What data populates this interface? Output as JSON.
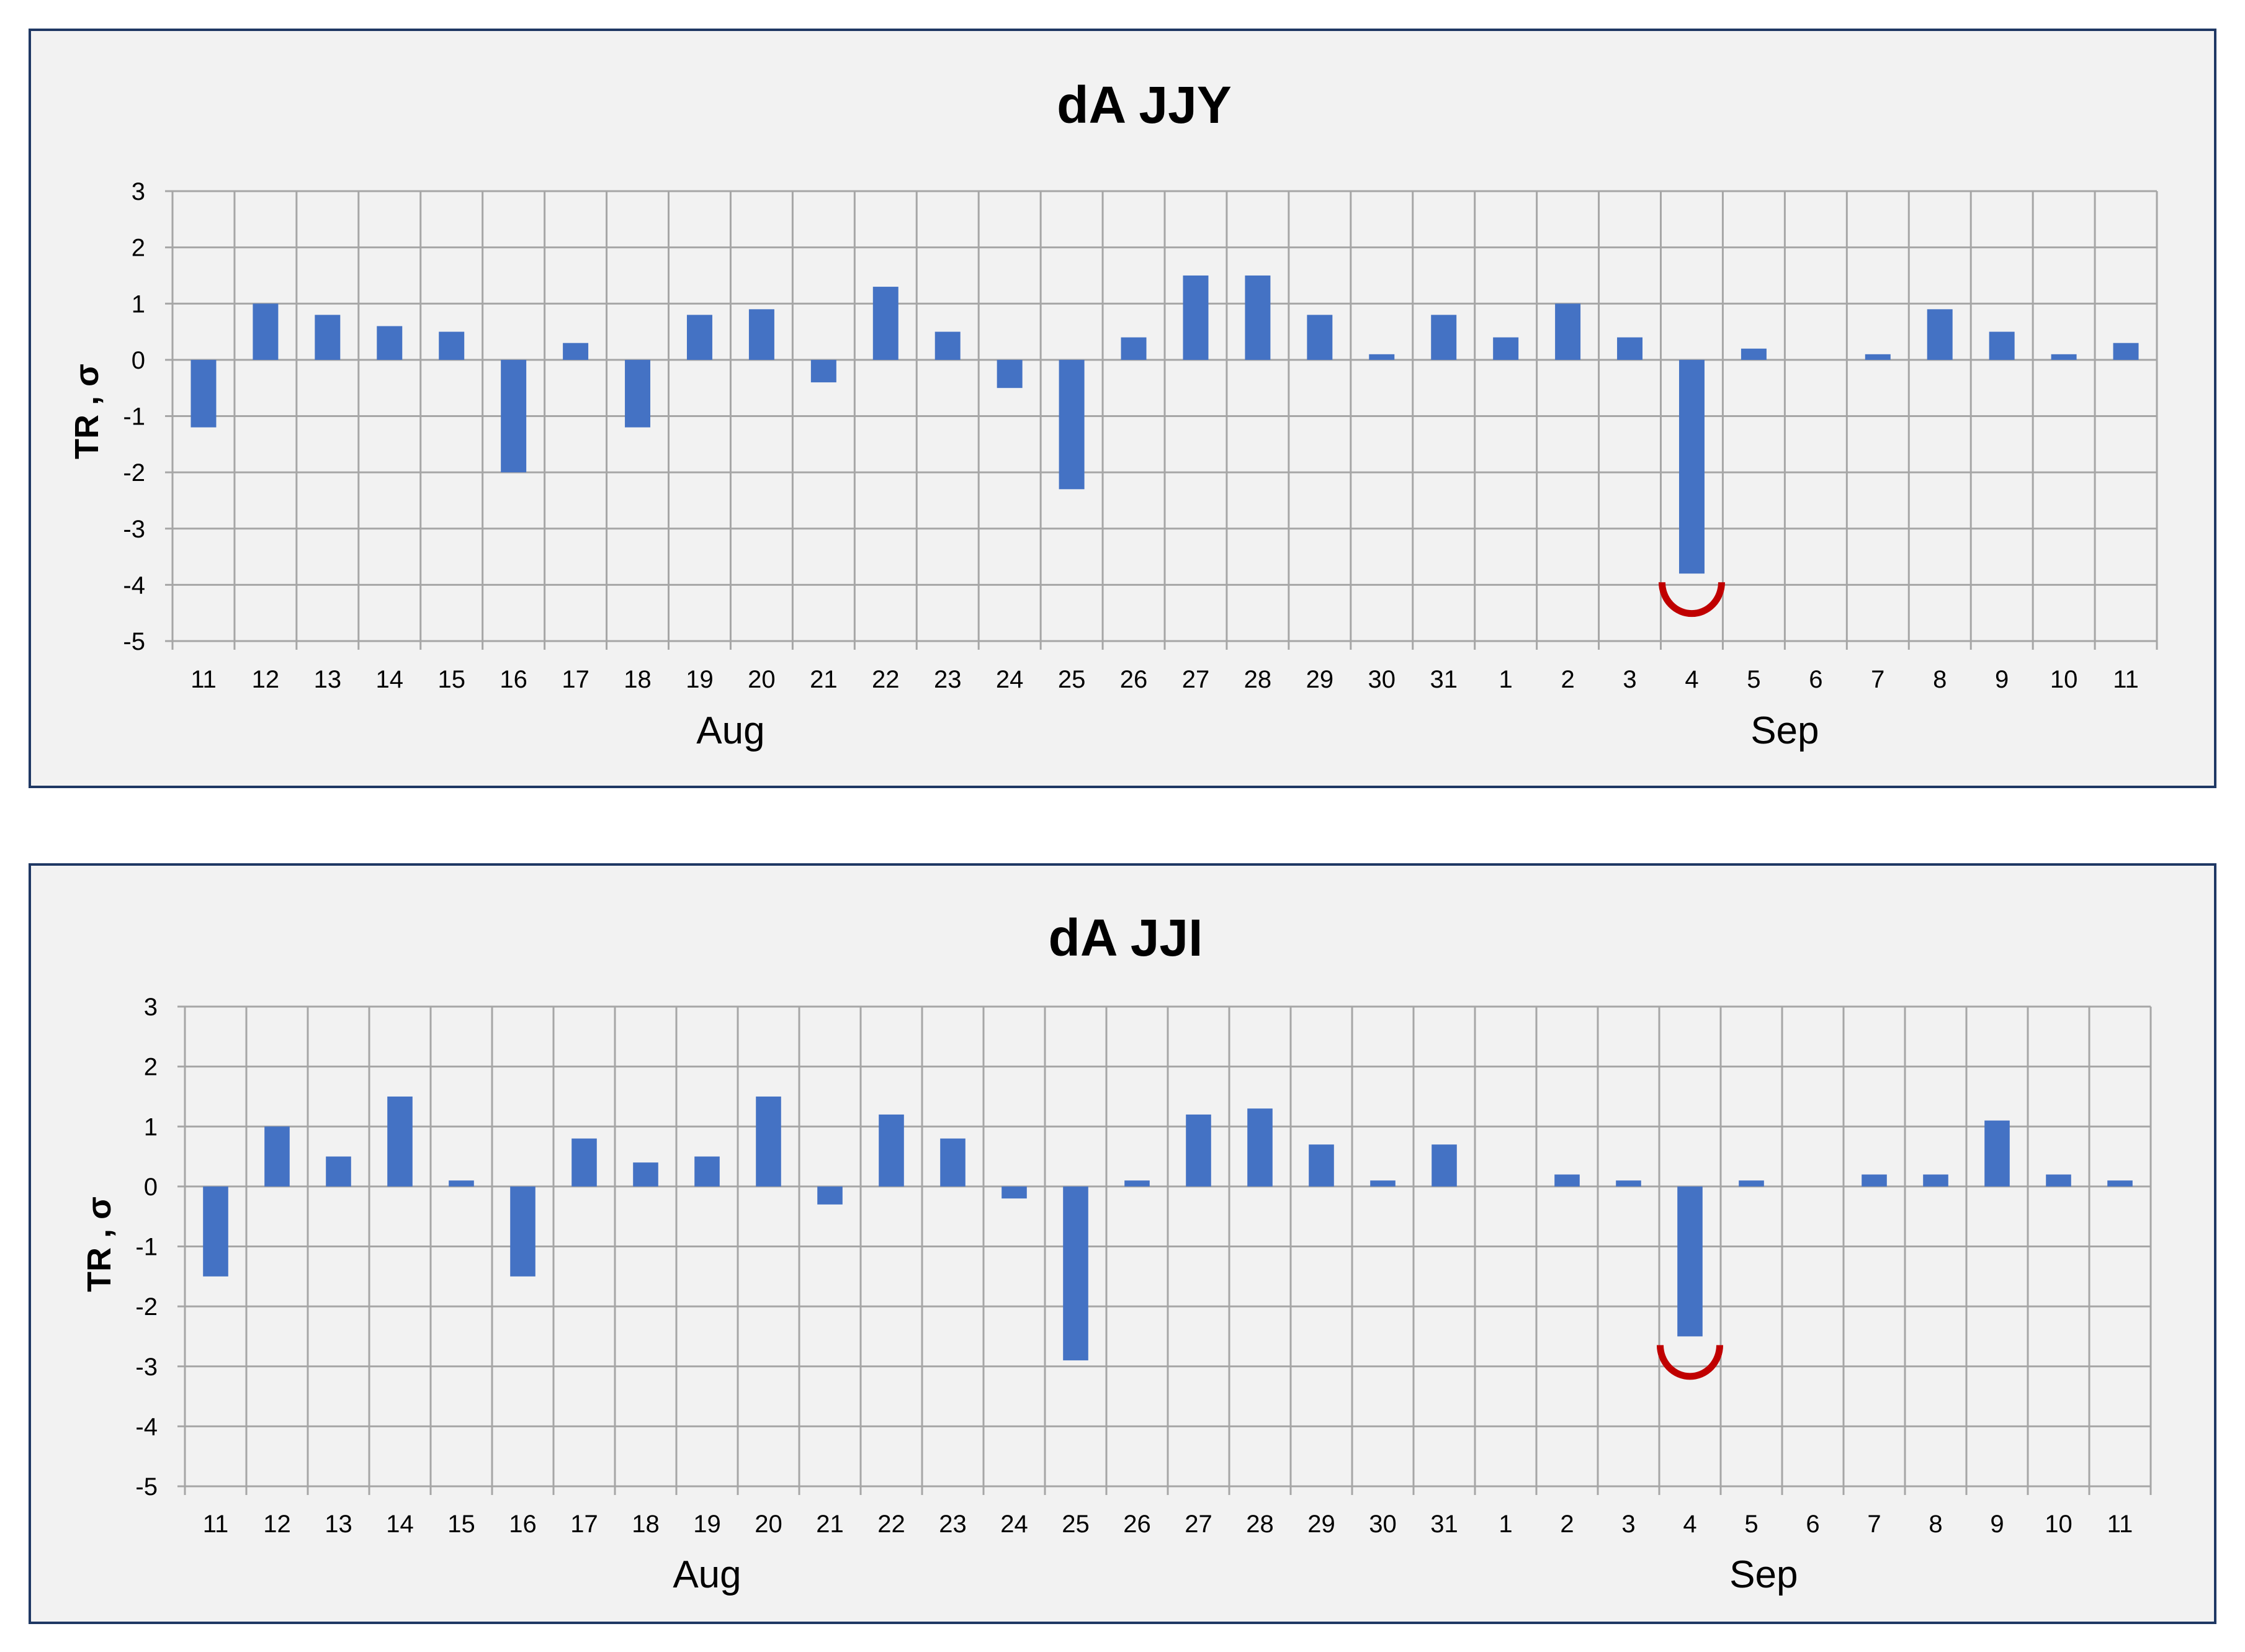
{
  "chart_data": [
    {
      "type": "bar",
      "title": "dA JJY",
      "ylabel": "TR , σ",
      "xlabel": "",
      "ylim": [
        -5,
        3
      ],
      "yticks": [
        3,
        2,
        1,
        0,
        -1,
        -2,
        -3,
        -4,
        -5
      ],
      "grid": true,
      "categories": [
        "11",
        "12",
        "13",
        "14",
        "15",
        "16",
        "17",
        "18",
        "19",
        "20",
        "21",
        "22",
        "23",
        "24",
        "25",
        "26",
        "27",
        "28",
        "29",
        "30",
        "31",
        "1",
        "2",
        "3",
        "4",
        "5",
        "6",
        "7",
        "8",
        "9",
        "10",
        "11"
      ],
      "month_labels": [
        {
          "label": "Aug",
          "under_index": 8.5
        },
        {
          "label": "Sep",
          "under_index": 25.5
        }
      ],
      "values": [
        -1.2,
        1.0,
        0.8,
        0.6,
        0.5,
        -2.0,
        0.3,
        -1.2,
        0.8,
        0.9,
        -0.4,
        1.3,
        0.5,
        -0.5,
        -2.3,
        0.4,
        1.5,
        1.5,
        0.8,
        0.1,
        0.8,
        0.4,
        1.0,
        0.4,
        -3.8,
        0.2,
        0,
        0.1,
        0.9,
        0.5,
        0.1,
        0.3
      ],
      "highlight_index": 24,
      "colors": {
        "bar": "#4472c4",
        "highlight": "#c00000",
        "grid": "#a6a6a6"
      }
    },
    {
      "type": "bar",
      "title": "dA JJI",
      "ylabel": "TR , σ",
      "xlabel": "",
      "ylim": [
        -5,
        3
      ],
      "yticks": [
        3,
        2,
        1,
        0,
        -1,
        -2,
        -3,
        -4,
        -5
      ],
      "grid": true,
      "categories": [
        "11",
        "12",
        "13",
        "14",
        "15",
        "16",
        "17",
        "18",
        "19",
        "20",
        "21",
        "22",
        "23",
        "24",
        "25",
        "26",
        "27",
        "28",
        "29",
        "30",
        "31",
        "1",
        "2",
        "3",
        "4",
        "5",
        "6",
        "7",
        "8",
        "9",
        "10",
        "11"
      ],
      "month_labels": [
        {
          "label": "Aug",
          "under_index": 8
        },
        {
          "label": "Sep",
          "under_index": 25.2
        }
      ],
      "values": [
        -1.5,
        1.0,
        0.5,
        1.5,
        0.1,
        -1.5,
        0.8,
        0.4,
        0.5,
        1.5,
        -0.3,
        1.2,
        0.8,
        -0.2,
        -2.9,
        0.1,
        1.2,
        1.3,
        0.7,
        0.1,
        0.7,
        0,
        0.2,
        0.1,
        -2.5,
        0.1,
        0,
        0.2,
        0.2,
        1.1,
        0.2,
        0.1
      ],
      "highlight_index": 24,
      "colors": {
        "bar": "#4472c4",
        "highlight": "#c00000",
        "grid": "#a6a6a6"
      }
    }
  ]
}
